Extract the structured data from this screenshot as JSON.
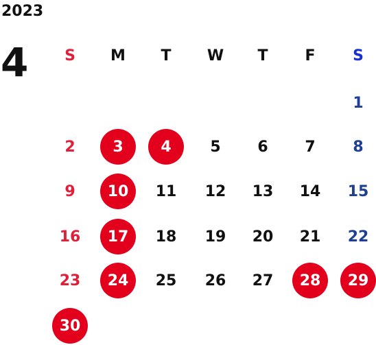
{
  "calendar": {
    "year": "2023",
    "month": "4",
    "weekday_labels": [
      "S",
      "M",
      "T",
      "W",
      "T",
      "F",
      "S"
    ],
    "weeks": [
      [
        "",
        "",
        "",
        "",
        "",
        "",
        "1"
      ],
      [
        "2",
        "3",
        "4",
        "5",
        "6",
        "7",
        "8"
      ],
      [
        "9",
        "10",
        "11",
        "12",
        "13",
        "14",
        "15"
      ],
      [
        "16",
        "17",
        "18",
        "19",
        "20",
        "21",
        "22"
      ],
      [
        "23",
        "24",
        "25",
        "26",
        "27",
        "28",
        "29"
      ],
      [
        "30",
        "",
        "",
        "",
        "",
        "",
        ""
      ]
    ],
    "highlighted_days": [
      "3",
      "4",
      "10",
      "17",
      "24",
      "28",
      "29",
      "30"
    ]
  },
  "colors": {
    "sunday": "#e0203a",
    "saturday": "#1e3f94",
    "saturday_header": "#1a2fd0",
    "highlight_fill": "#e2001d",
    "highlight_text": "#ffffff",
    "weekday_text": "#111111"
  }
}
